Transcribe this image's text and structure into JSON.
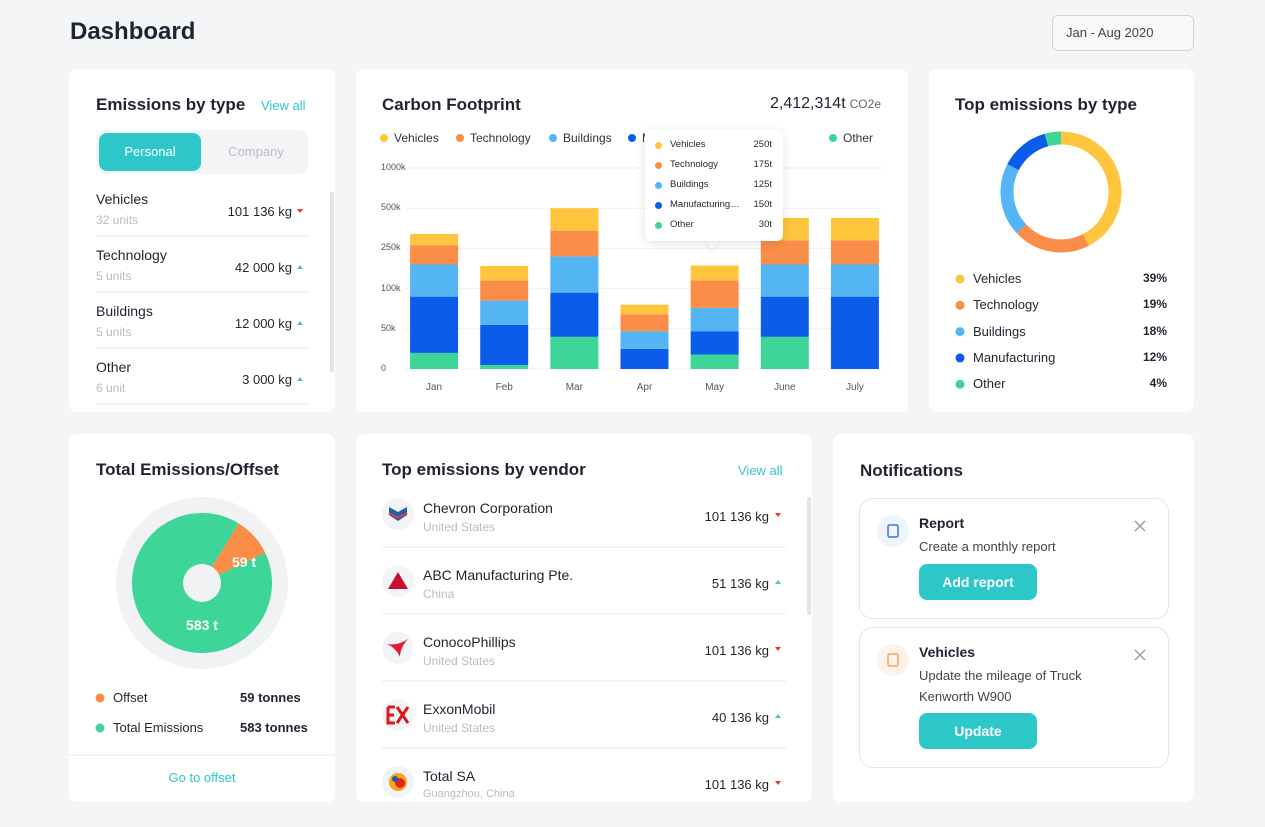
{
  "header": {
    "title": "Dashboard",
    "date_range": "Jan - Aug 2020"
  },
  "emissions_by_type": {
    "title": "Emissions by type",
    "view_all": "View all",
    "tabs": [
      "Personal",
      "Company"
    ],
    "items": [
      {
        "name": "Vehicles",
        "units": "32 units",
        "amount": "101 136 kg",
        "trend": "down"
      },
      {
        "name": "Technology",
        "units": "5 units",
        "amount": "42 000 kg",
        "trend": "up"
      },
      {
        "name": "Buildings",
        "units": "5 units",
        "amount": "12 000 kg",
        "trend": "up"
      },
      {
        "name": "Other",
        "units": "6 unit",
        "amount": "3 000 kg",
        "trend": "up"
      }
    ]
  },
  "vendors": {
    "title": "Top emissions by vendor",
    "view_all": "View all",
    "items": [
      {
        "name": "Chevron Corporation",
        "country": "United States",
        "amount": "101 136 kg",
        "trend": "down"
      },
      {
        "name": "ABC Manufacturing Pte.",
        "country": "China",
        "amount": "51 136 kg",
        "trend": "up"
      },
      {
        "name": "ConocoPhillips",
        "country": "United States",
        "amount": "101 136 kg",
        "trend": "down"
      },
      {
        "name": "ExxonMobil",
        "country": "United States",
        "amount": "40 136 kg",
        "trend": "up"
      },
      {
        "name": "Total SA",
        "country": "Guangzhou, China",
        "amount": "101 136 kg",
        "trend": "down"
      }
    ]
  },
  "notifications": {
    "title": "Notifications",
    "items": [
      {
        "title": "Report",
        "text": "Create a monthly report",
        "button": "Add report"
      },
      {
        "title": "Vehicles",
        "text": "Update the mileage of Truck Kenworth W900",
        "button": "Update"
      }
    ]
  },
  "chart_data": [
    {
      "type": "bar",
      "stacked": true,
      "title": "Carbon Footprint",
      "total_label": "2,412,314t",
      "total_unit": "CO2e",
      "categories": [
        "Jan",
        "Feb",
        "Mar",
        "Apr",
        "May",
        "June",
        "July"
      ],
      "series": [
        {
          "name": "Vehicles",
          "color": "#fec53d",
          "values": [
            70000,
            55000,
            140000,
            12000,
            56000,
            140000,
            140000
          ]
        },
        {
          "name": "Technology",
          "color": "#fa8d48",
          "values": [
            80000,
            45000,
            140000,
            21000,
            54000,
            110000,
            110000
          ]
        },
        {
          "name": "Buildings",
          "color": "#54b5f5",
          "values": [
            100000,
            30000,
            125000,
            22000,
            29000,
            100000,
            100000
          ]
        },
        {
          "name": "Manufacturing",
          "color": "#0b5ce8",
          "values": [
            70000,
            50000,
            55000,
            25000,
            29000,
            50000,
            90000
          ]
        },
        {
          "name": "Other",
          "color": "#3dd598",
          "values": [
            20000,
            5000,
            40000,
            0,
            18000,
            40000,
            0
          ]
        }
      ],
      "ylim": [
        0,
        1000000
      ],
      "yticks": [
        0,
        {
          "value": 50000,
          "label": "50k"
        },
        {
          "value": 100000,
          "label": "100k"
        },
        {
          "value": 250000,
          "label": "250k"
        },
        {
          "value": 500000,
          "label": "500k"
        },
        {
          "value": 1000000,
          "label": "1000k"
        }
      ],
      "grid": true,
      "tooltip": [
        {
          "name": "Vehicles",
          "value": "250t"
        },
        {
          "name": "Technology",
          "value": "175t"
        },
        {
          "name": "Buildings",
          "value": "125t"
        },
        {
          "name": "Manufacturing…",
          "value": "150t"
        },
        {
          "name": "Other",
          "value": "30t"
        }
      ]
    },
    {
      "type": "donut",
      "title": "Top emissions by type",
      "categories": [
        "Vehicles",
        "Technology",
        "Buildings",
        "Manufacturing",
        "Other"
      ],
      "colors": [
        "#fec53d",
        "#fa8d48",
        "#54b5f5",
        "#0b5ce8",
        "#3dd598"
      ],
      "values": [
        39,
        19,
        18,
        12,
        4
      ],
      "value_labels": [
        "39%",
        "19%",
        "18%",
        "12%",
        "4%"
      ]
    },
    {
      "type": "pie",
      "title": "Total Emissions/Offset",
      "categories": [
        "Offset",
        "Total Emissions"
      ],
      "colors": [
        "#fa8d48",
        "#3dd598"
      ],
      "values": [
        59,
        583
      ],
      "value_labels": [
        "59 t",
        "583 t"
      ],
      "legend_values": [
        "59 tonnes",
        "583 tonnes"
      ],
      "link": "Go to offset"
    }
  ]
}
